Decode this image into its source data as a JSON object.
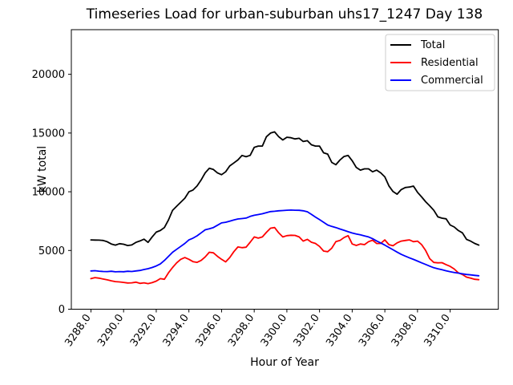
{
  "figure": {
    "background": "#ffffff",
    "title": "Timeseries Load for urban-suburban uhs17_1247  Day 138"
  },
  "chart_data": {
    "type": "line",
    "title": "Timeseries Load for urban-suburban uhs17_1247  Day 138",
    "xlabel": "Hour of Year",
    "ylabel": "kW total",
    "grid": false,
    "legend_position": "upper right",
    "xlim": [
      3286.8,
      3312.95
    ],
    "ylim": [
      0,
      23800
    ],
    "xticks": [
      3288,
      3290,
      3292,
      3294,
      3296,
      3298,
      3300,
      3302,
      3304,
      3306,
      3308,
      3310
    ],
    "xtick_labels": [
      "3288.0",
      "3290.0",
      "3292.0",
      "3294.0",
      "3296.0",
      "3298.0",
      "3300.0",
      "3302.0",
      "3304.0",
      "3306.0",
      "3308.0",
      "3310.0"
    ],
    "yticks": [
      0,
      5000,
      10000,
      15000,
      20000
    ],
    "ytick_labels": [
      "0",
      "5000",
      "10000",
      "15000",
      "20000"
    ],
    "x": [
      3288.0,
      3288.25,
      3288.5,
      3288.75,
      3289.0,
      3289.25,
      3289.5,
      3289.75,
      3290.0,
      3290.25,
      3290.5,
      3290.75,
      3291.0,
      3291.25,
      3291.5,
      3291.75,
      3292.0,
      3292.25,
      3292.5,
      3292.75,
      3293.0,
      3293.25,
      3293.5,
      3293.75,
      3294.0,
      3294.25,
      3294.5,
      3294.75,
      3295.0,
      3295.25,
      3295.5,
      3295.75,
      3296.0,
      3296.25,
      3296.5,
      3296.75,
      3297.0,
      3297.25,
      3297.5,
      3297.75,
      3298.0,
      3298.25,
      3298.5,
      3298.75,
      3299.0,
      3299.25,
      3299.5,
      3299.75,
      3300.0,
      3300.25,
      3300.5,
      3300.75,
      3301.0,
      3301.25,
      3301.5,
      3301.75,
      3302.0,
      3302.25,
      3302.5,
      3302.75,
      3303.0,
      3303.25,
      3303.5,
      3303.75,
      3304.0,
      3304.25,
      3304.5,
      3304.75,
      3305.0,
      3305.25,
      3305.5,
      3305.75,
      3306.0,
      3306.25,
      3306.5,
      3306.75,
      3307.0,
      3307.25,
      3307.5,
      3307.75,
      3308.0,
      3308.25,
      3308.5,
      3308.75,
      3309.0,
      3309.25,
      3309.5,
      3309.75,
      3310.0,
      3310.25,
      3310.5,
      3310.75,
      3311.0,
      3311.25,
      3311.5,
      3311.75
    ],
    "series": [
      {
        "name": "Total",
        "color": "#000000",
        "values": [
          5900,
          5890,
          5880,
          5850,
          5740,
          5550,
          5460,
          5580,
          5530,
          5420,
          5470,
          5690,
          5810,
          5960,
          5690,
          6150,
          6560,
          6700,
          6950,
          7600,
          8420,
          8770,
          9110,
          9450,
          10000,
          10150,
          10500,
          11000,
          11610,
          12000,
          11900,
          11600,
          11450,
          11700,
          12200,
          12450,
          12710,
          13090,
          12980,
          13100,
          13780,
          13890,
          13890,
          14690,
          15000,
          15100,
          14690,
          14410,
          14640,
          14600,
          14500,
          14550,
          14280,
          14350,
          14000,
          13890,
          13890,
          13320,
          13210,
          12500,
          12300,
          12700,
          13000,
          13090,
          12640,
          12070,
          11840,
          11950,
          11950,
          11700,
          11840,
          11610,
          11270,
          10500,
          10020,
          9790,
          10180,
          10360,
          10400,
          10480,
          9950,
          9560,
          9150,
          8800,
          8420,
          7860,
          7750,
          7700,
          7170,
          7000,
          6700,
          6500,
          5950,
          5800,
          5600,
          5460
        ]
      },
      {
        "name": "Residential",
        "color": "#ff0000",
        "values": [
          2600,
          2690,
          2640,
          2570,
          2500,
          2420,
          2350,
          2320,
          2280,
          2230,
          2250,
          2300,
          2200,
          2250,
          2180,
          2260,
          2390,
          2600,
          2550,
          3100,
          3550,
          3950,
          4250,
          4400,
          4250,
          4050,
          3990,
          4150,
          4450,
          4850,
          4800,
          4500,
          4250,
          4030,
          4400,
          4900,
          5300,
          5240,
          5280,
          5700,
          6150,
          6050,
          6150,
          6550,
          6900,
          6950,
          6500,
          6150,
          6260,
          6300,
          6280,
          6150,
          5800,
          5950,
          5700,
          5600,
          5350,
          4950,
          4900,
          5200,
          5750,
          5850,
          6100,
          6260,
          5550,
          5430,
          5550,
          5500,
          5750,
          5870,
          5590,
          5600,
          5900,
          5500,
          5400,
          5650,
          5800,
          5850,
          5900,
          5750,
          5800,
          5500,
          5000,
          4300,
          3980,
          3950,
          3960,
          3800,
          3650,
          3420,
          3100,
          2950,
          2730,
          2650,
          2550,
          2510
        ]
      },
      {
        "name": "Commercial",
        "color": "#0000ff",
        "values": [
          3260,
          3280,
          3240,
          3210,
          3200,
          3230,
          3180,
          3200,
          3190,
          3230,
          3210,
          3260,
          3300,
          3380,
          3450,
          3550,
          3680,
          3850,
          4150,
          4500,
          4850,
          5100,
          5350,
          5600,
          5900,
          6050,
          6250,
          6500,
          6760,
          6850,
          6950,
          7150,
          7350,
          7400,
          7500,
          7600,
          7680,
          7720,
          7760,
          7900,
          8000,
          8060,
          8130,
          8220,
          8310,
          8340,
          8380,
          8400,
          8430,
          8440,
          8430,
          8420,
          8380,
          8300,
          8080,
          7850,
          7630,
          7400,
          7170,
          7050,
          6950,
          6830,
          6720,
          6600,
          6490,
          6400,
          6330,
          6240,
          6150,
          6000,
          5810,
          5640,
          5460,
          5260,
          5060,
          4860,
          4670,
          4520,
          4380,
          4240,
          4100,
          3950,
          3810,
          3670,
          3530,
          3440,
          3360,
          3270,
          3190,
          3130,
          3070,
          3010,
          2960,
          2920,
          2880,
          2850
        ]
      }
    ]
  },
  "legend": {
    "items": [
      {
        "label": "Total",
        "color": "#000000"
      },
      {
        "label": "Residential",
        "color": "#ff0000"
      },
      {
        "label": "Commercial",
        "color": "#0000ff"
      }
    ]
  }
}
